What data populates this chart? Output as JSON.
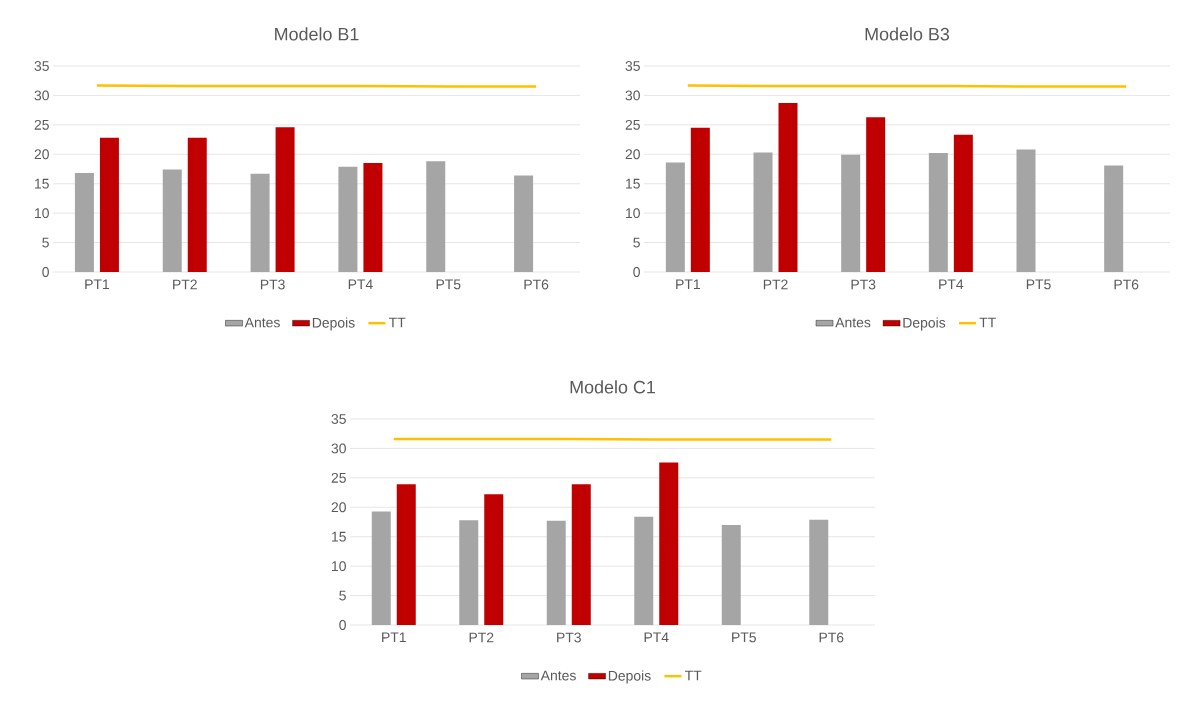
{
  "chart_data": [
    {
      "type": "bar",
      "title": "Modelo B1",
      "categories": [
        "PT1",
        "PT2",
        "PT3",
        "PT4",
        "PT5",
        "PT6"
      ],
      "ylim": [
        0,
        35
      ],
      "yticks": [
        0,
        5,
        10,
        15,
        20,
        25,
        30,
        35
      ],
      "grid": "y",
      "legend": "bottom",
      "series": [
        {
          "name": "Antes",
          "color": "#a5a5a5",
          "values": [
            16.8,
            17.4,
            16.7,
            17.9,
            18.8,
            16.4
          ]
        },
        {
          "name": "Depois",
          "color": "#c00000",
          "values": [
            22.8,
            22.8,
            24.6,
            18.5,
            null,
            null
          ]
        },
        {
          "name": "TT",
          "type": "line",
          "color": "#ffc000",
          "values": [
            31.7,
            31.6,
            31.6,
            31.6,
            31.5,
            31.5
          ]
        }
      ]
    },
    {
      "type": "bar",
      "title": "Modelo B3",
      "categories": [
        "PT1",
        "PT2",
        "PT3",
        "PT4",
        "PT5",
        "PT6"
      ],
      "ylim": [
        0,
        35
      ],
      "yticks": [
        0,
        5,
        10,
        15,
        20,
        25,
        30,
        35
      ],
      "grid": "y",
      "legend": "bottom",
      "series": [
        {
          "name": "Antes",
          "color": "#a5a5a5",
          "values": [
            18.6,
            20.3,
            19.9,
            20.2,
            20.8,
            18.1
          ]
        },
        {
          "name": "Depois",
          "color": "#c00000",
          "values": [
            24.5,
            28.7,
            26.3,
            23.3,
            null,
            null
          ]
        },
        {
          "name": "TT",
          "type": "line",
          "color": "#ffc000",
          "values": [
            31.7,
            31.6,
            31.6,
            31.6,
            31.5,
            31.5
          ]
        }
      ]
    },
    {
      "type": "bar",
      "title": "Modelo C1",
      "categories": [
        "PT1",
        "PT2",
        "PT3",
        "PT4",
        "PT5",
        "PT6"
      ],
      "ylim": [
        0,
        35
      ],
      "yticks": [
        0,
        5,
        10,
        15,
        20,
        25,
        30,
        35
      ],
      "grid": "y",
      "legend": "bottom",
      "series": [
        {
          "name": "Antes",
          "color": "#a5a5a5",
          "values": [
            19.3,
            17.8,
            17.7,
            18.4,
            17.0,
            17.9
          ]
        },
        {
          "name": "Depois",
          "color": "#c00000",
          "values": [
            23.9,
            22.2,
            23.9,
            27.6,
            null,
            null
          ]
        },
        {
          "name": "TT",
          "type": "line",
          "color": "#ffc000",
          "values": [
            31.6,
            31.6,
            31.6,
            31.5,
            31.5,
            31.5
          ]
        }
      ]
    }
  ]
}
